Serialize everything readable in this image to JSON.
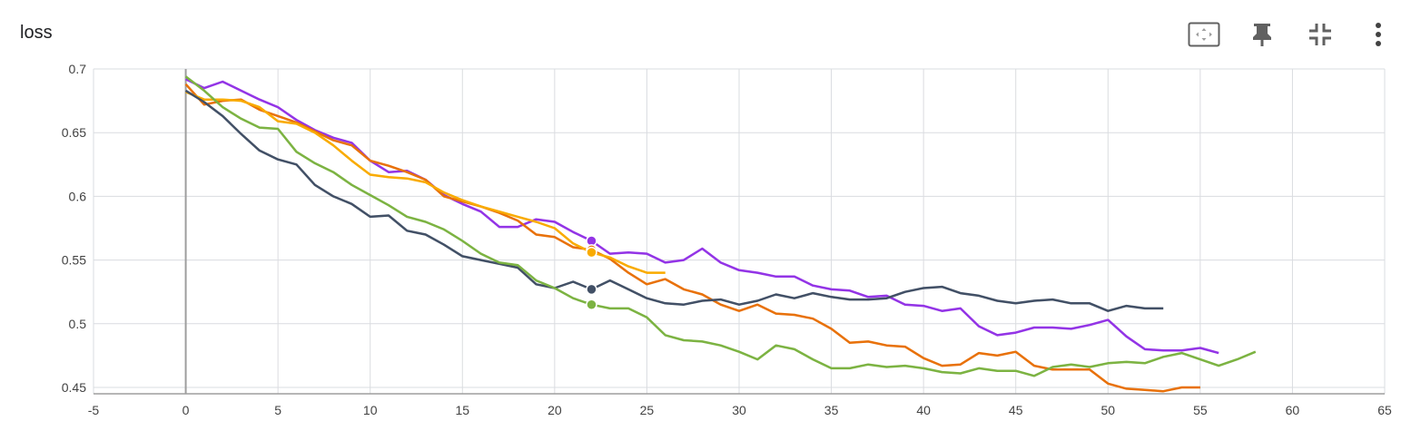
{
  "title": "loss",
  "toolbar": {
    "icons": [
      "fit-domain-icon",
      "pin-icon",
      "collapse-icon",
      "more-vert-icon"
    ]
  },
  "chart_data": {
    "type": "line",
    "title": "loss",
    "xlabel": "",
    "ylabel": "",
    "xlim": [
      -5,
      65
    ],
    "ylim": [
      0.445,
      0.7
    ],
    "x_ticks": [
      "-5",
      "0",
      "5",
      "10",
      "15",
      "20",
      "25",
      "30",
      "35",
      "40",
      "45",
      "50",
      "55",
      "60",
      "65"
    ],
    "y_ticks": [
      "0.45",
      "0.5",
      "0.55",
      "0.6",
      "0.65",
      "0.7"
    ],
    "grid": true,
    "hover_step": 22,
    "series": [
      {
        "color": "#9334e6",
        "x": [
          0,
          1,
          2,
          3,
          4,
          5,
          6,
          7,
          8,
          9,
          10,
          11,
          12,
          13,
          14,
          15,
          16,
          17,
          18,
          19,
          20,
          21,
          22,
          23,
          24,
          25,
          26,
          27,
          28,
          29,
          30,
          31,
          32,
          33,
          34,
          35,
          36,
          37,
          38,
          39,
          40,
          41,
          42,
          43,
          44,
          45,
          46,
          47,
          48,
          49,
          50,
          51,
          52,
          53,
          54,
          55,
          56
        ],
        "y": [
          0.692,
          0.685,
          0.69,
          0.683,
          0.676,
          0.67,
          0.66,
          0.652,
          0.646,
          0.642,
          0.628,
          0.619,
          0.62,
          0.613,
          0.601,
          0.594,
          0.588,
          0.576,
          0.576,
          0.582,
          0.58,
          0.572,
          0.565,
          0.555,
          0.556,
          0.555,
          0.548,
          0.55,
          0.559,
          0.548,
          0.542,
          0.54,
          0.537,
          0.537,
          0.53,
          0.527,
          0.526,
          0.521,
          0.522,
          0.515,
          0.514,
          0.51,
          0.512,
          0.498,
          0.491,
          0.493,
          0.497,
          0.497,
          0.496,
          0.499,
          0.503,
          0.49,
          0.48,
          0.479,
          0.479,
          0.481,
          0.477
        ]
      },
      {
        "color": "#e8710a",
        "x": [
          0,
          1,
          2,
          3,
          4,
          5,
          6,
          7,
          8,
          9,
          10,
          11,
          12,
          13,
          14,
          15,
          16,
          17,
          18,
          19,
          20,
          21,
          22,
          23,
          24,
          25,
          26,
          27,
          28,
          29,
          30,
          31,
          32,
          33,
          34,
          35,
          36,
          37,
          38,
          39,
          40,
          41,
          42,
          43,
          44,
          45,
          46,
          47,
          48,
          49,
          50,
          51,
          52,
          53,
          54,
          55
        ],
        "y": [
          0.688,
          0.672,
          0.675,
          0.676,
          0.668,
          0.663,
          0.658,
          0.651,
          0.644,
          0.64,
          0.628,
          0.624,
          0.619,
          0.613,
          0.6,
          0.596,
          0.592,
          0.587,
          0.581,
          0.57,
          0.568,
          0.56,
          0.558,
          0.551,
          0.54,
          0.531,
          0.535,
          0.527,
          0.523,
          0.515,
          0.51,
          0.515,
          0.508,
          0.507,
          0.504,
          0.496,
          0.485,
          0.486,
          0.483,
          0.482,
          0.473,
          0.467,
          0.468,
          0.477,
          0.475,
          0.478,
          0.467,
          0.464,
          0.464,
          0.464,
          0.453,
          0.449,
          0.448,
          0.447,
          0.45,
          0.45
        ]
      },
      {
        "color": "#f9ab00",
        "x": [
          0,
          1,
          2,
          3,
          4,
          5,
          6,
          7,
          8,
          9,
          10,
          11,
          12,
          13,
          14,
          15,
          16,
          17,
          18,
          19,
          20,
          21,
          22,
          23,
          24,
          25,
          26
        ],
        "y": [
          0.682,
          0.676,
          0.676,
          0.675,
          0.67,
          0.659,
          0.657,
          0.65,
          0.64,
          0.628,
          0.617,
          0.615,
          0.614,
          0.611,
          0.603,
          0.597,
          0.592,
          0.588,
          0.584,
          0.58,
          0.575,
          0.563,
          0.556,
          0.552,
          0.545,
          0.54,
          0.54
        ]
      },
      {
        "color": "#425066",
        "x": [
          0,
          1,
          2,
          3,
          4,
          5,
          6,
          7,
          8,
          9,
          10,
          11,
          12,
          13,
          14,
          15,
          16,
          17,
          18,
          19,
          20,
          21,
          22,
          23,
          24,
          25,
          26,
          27,
          28,
          29,
          30,
          31,
          32,
          33,
          34,
          35,
          36,
          37,
          38,
          39,
          40,
          41,
          42,
          43,
          44,
          45,
          46,
          47,
          48,
          49,
          50,
          51,
          52,
          53
        ],
        "y": [
          0.683,
          0.674,
          0.663,
          0.649,
          0.636,
          0.629,
          0.625,
          0.609,
          0.6,
          0.594,
          0.584,
          0.585,
          0.573,
          0.57,
          0.562,
          0.553,
          0.55,
          0.547,
          0.544,
          0.531,
          0.528,
          0.533,
          0.527,
          0.534,
          0.527,
          0.52,
          0.516,
          0.515,
          0.518,
          0.519,
          0.515,
          0.518,
          0.523,
          0.52,
          0.524,
          0.521,
          0.519,
          0.519,
          0.52,
          0.525,
          0.528,
          0.529,
          0.524,
          0.522,
          0.518,
          0.516,
          0.518,
          0.519,
          0.516,
          0.516,
          0.51,
          0.514,
          0.512,
          0.512
        ]
      },
      {
        "color": "#7cb342",
        "x": [
          0,
          1,
          2,
          3,
          4,
          5,
          6,
          7,
          8,
          9,
          10,
          11,
          12,
          13,
          14,
          15,
          16,
          17,
          18,
          19,
          20,
          21,
          22,
          23,
          24,
          25,
          26,
          27,
          28,
          29,
          30,
          31,
          32,
          33,
          34,
          35,
          36,
          37,
          38,
          39,
          40,
          41,
          42,
          43,
          44,
          45,
          46,
          47,
          48,
          49,
          50,
          51,
          52,
          53,
          54,
          55,
          56,
          57,
          58
        ],
        "y": [
          0.694,
          0.683,
          0.67,
          0.661,
          0.654,
          0.653,
          0.635,
          0.626,
          0.619,
          0.609,
          0.601,
          0.593,
          0.584,
          0.58,
          0.574,
          0.565,
          0.555,
          0.548,
          0.546,
          0.534,
          0.528,
          0.52,
          0.515,
          0.512,
          0.512,
          0.505,
          0.491,
          0.487,
          0.486,
          0.483,
          0.478,
          0.472,
          0.483,
          0.48,
          0.472,
          0.465,
          0.465,
          0.468,
          0.466,
          0.467,
          0.465,
          0.462,
          0.461,
          0.465,
          0.463,
          0.463,
          0.459,
          0.466,
          0.468,
          0.466,
          0.469,
          0.47,
          0.469,
          0.474,
          0.477,
          0.472,
          0.467,
          0.472,
          0.478
        ]
      }
    ]
  }
}
